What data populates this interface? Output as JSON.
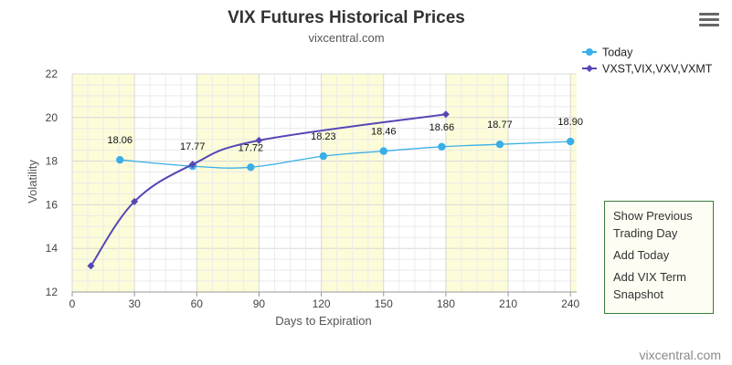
{
  "chart_data": {
    "type": "line",
    "title": "VIX Futures Historical Prices",
    "subtitle": "vixcentral.com",
    "xlabel": "Days to Expiration",
    "ylabel": "Volatility",
    "xlim": [
      0,
      240
    ],
    "ylim": [
      12,
      22
    ],
    "x_ticks": [
      "0",
      "30",
      "60",
      "90",
      "120",
      "150",
      "180",
      "210",
      "240"
    ],
    "y_ticks": [
      "12",
      "14",
      "16",
      "18",
      "20",
      "22"
    ],
    "grid": true,
    "legend_position": "top-right",
    "shaded_bands": [
      [
        0,
        30
      ],
      [
        60,
        90
      ],
      [
        120,
        150
      ],
      [
        180,
        210
      ],
      [
        240,
        243
      ]
    ],
    "series": [
      {
        "name": "Today",
        "color": "#3aaee8",
        "marker": "circle",
        "smooth": true,
        "x": [
          23,
          58,
          86,
          121,
          150,
          178,
          206,
          240
        ],
        "y": [
          18.06,
          17.77,
          17.72,
          18.23,
          18.46,
          18.66,
          18.77,
          18.9
        ],
        "labels": [
          "18.06",
          "17.77",
          "17.72",
          "18.23",
          "18.46",
          "18.66",
          "18.77",
          "18.90"
        ]
      },
      {
        "name": "VXST,VIX,VXV,VXMT",
        "color": "#5547b5",
        "marker": "diamond",
        "smooth": true,
        "x": [
          9,
          30,
          58,
          90,
          180
        ],
        "y": [
          13.2,
          16.15,
          17.85,
          18.95,
          20.15
        ]
      }
    ]
  },
  "menu": {
    "items": [
      "Show Previous Trading Day",
      "Add Today",
      "Add VIX Term Snapshot"
    ]
  },
  "credit": "vixcentral.com"
}
